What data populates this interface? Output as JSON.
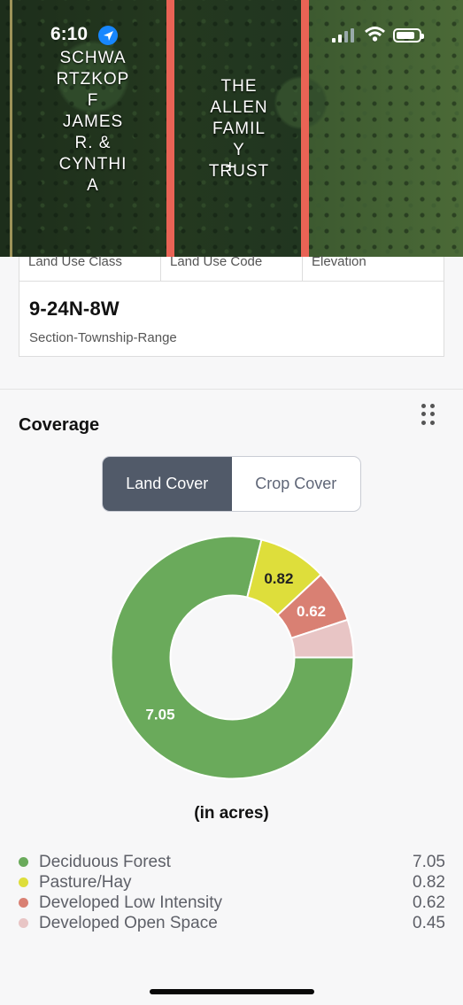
{
  "status_bar": {
    "time": "6:10",
    "icons": [
      "location-arrow-icon",
      "signal-icon",
      "wifi-icon",
      "battery-icon"
    ]
  },
  "map": {
    "owner_labels": [
      "SCHWA\nRTZKOP\nF\nJAMES\nR. &\nCYNTHI\nA",
      "THE\nALLEN\nFAMIL\nY\nTRUST"
    ],
    "crosshair": "+"
  },
  "property_card": {
    "headers": [
      "Land Use Class",
      "Land Use Code",
      "Elevation"
    ],
    "section_township_range": "9-24N-8W",
    "section_township_range_label": "Section-Township-Range"
  },
  "coverage": {
    "title": "Coverage",
    "tabs": [
      {
        "label": "Land Cover",
        "active": true
      },
      {
        "label": "Crop Cover",
        "active": false
      }
    ],
    "unit_label": "(in acres)"
  },
  "chart_data": {
    "type": "pie",
    "donut": true,
    "title": "",
    "categories": [
      "Deciduous Forest",
      "Pasture/Hay",
      "Developed Low Intensity",
      "Developed Open Space"
    ],
    "values": [
      7.05,
      0.82,
      0.62,
      0.45
    ],
    "data_labels": [
      "7.05",
      "0.82",
      "0.62",
      ""
    ],
    "colors": [
      "#6aaa5b",
      "#dede3b",
      "#d98073",
      "#e8c5c5"
    ]
  },
  "legend": [
    {
      "label": "Deciduous Forest",
      "value": "7.05",
      "color": "#6aaa5b"
    },
    {
      "label": "Pasture/Hay",
      "value": "0.82",
      "color": "#dede3b"
    },
    {
      "label": "Developed Low Intensity",
      "value": "0.62",
      "color": "#d98073"
    },
    {
      "label": "Developed Open Space",
      "value": "0.45",
      "color": "#e8c5c5"
    }
  ]
}
